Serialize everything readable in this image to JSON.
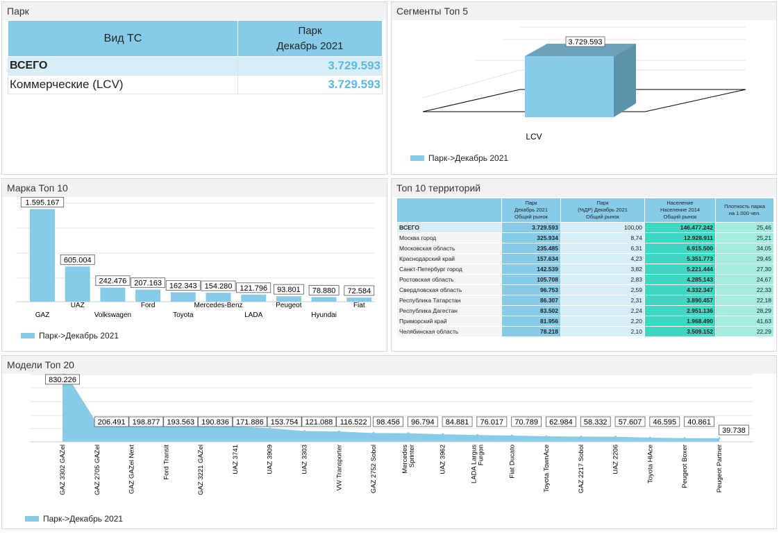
{
  "park": {
    "title": "Парк",
    "col1": "Вид ТС",
    "col2_line1": "Парк",
    "col2_line2": "Декабрь 2021",
    "rows": [
      {
        "label": "ВСЕГО",
        "value": "3.729.593"
      },
      {
        "label": "Коммерческие (LCV)",
        "value": "3.729.593"
      }
    ]
  },
  "segments": {
    "title": "Сегменты Топ 5",
    "legend": "Парк->Декабрь 2021",
    "chart_data": {
      "type": "bar",
      "categories": [
        "LCV"
      ],
      "values": [
        3729593
      ],
      "labels": [
        "3.729.593"
      ]
    }
  },
  "brands": {
    "title": "Марка Топ 10",
    "legend": "Парк->Декабрь 2021",
    "chart_data": {
      "type": "bar",
      "categories": [
        "GAZ",
        "UAZ",
        "Volkswagen",
        "Ford",
        "Toyota",
        "Mercedes-Benz",
        "LADA",
        "Peugeot",
        "Hyundai",
        "Fiat"
      ],
      "values": [
        1595167,
        605004,
        242476,
        207163,
        162343,
        154280,
        121796,
        93801,
        78880,
        72584
      ],
      "labels": [
        "1.595.167",
        "605.004",
        "242.476",
        "207.163",
        "162.343",
        "154.280",
        "121.796",
        "93.801",
        "78.880",
        "72.584"
      ]
    }
  },
  "territories": {
    "title": "Топ 10 территорий",
    "headers": [
      "",
      "Парк\nДекабрь 2021\nОбщий рынок",
      "Парк\n(%ДР) Декабрь 2021\nОбщий рынок",
      "Население\nНаселение 2014\nОбщий рынок",
      "Плотность парка\nна 1.000 чел."
    ],
    "rows": [
      [
        "ВСЕГО",
        "3.729.593",
        "100,00",
        "146.477.242",
        "25,46"
      ],
      [
        "Москва город",
        "325.934",
        "8,74",
        "12.928.911",
        "25,21"
      ],
      [
        "Московская область",
        "235.485",
        "6,31",
        "6.915.500",
        "34,05"
      ],
      [
        "Краснодарский край",
        "157.634",
        "4,23",
        "5.351.773",
        "29,45"
      ],
      [
        "Санкт-Петербург город",
        "142.539",
        "3,82",
        "5.221.444",
        "27,30"
      ],
      [
        "Ростовская область",
        "105.708",
        "2,83",
        "4.285.143",
        "24,67"
      ],
      [
        "Свердловская область",
        "96.753",
        "2,59",
        "4.332.347",
        "22,33"
      ],
      [
        "Республика Татарстан",
        "86.307",
        "2,31",
        "3.890.457",
        "22,18"
      ],
      [
        "Республика Дагестан",
        "83.502",
        "2,24",
        "2.951.136",
        "28,29"
      ],
      [
        "Приморский край",
        "81.956",
        "2,20",
        "1.968.490",
        "41,63"
      ],
      [
        "Челябинская область",
        "78.218",
        "2,10",
        "3.509.152",
        "22,29"
      ]
    ]
  },
  "models": {
    "title": "Модели Топ 20",
    "legend": "Парк->Декабрь 2021",
    "chart_data": {
      "type": "area",
      "categories": [
        "GAZ 3302 GAZel",
        "GAZ 2705 GAZel",
        "GAZ GAZel Next",
        "Ford Transit",
        "GAZ 3221 GAZel",
        "UAZ 3741",
        "UAZ 3909",
        "UAZ 3303",
        "VW Transporter",
        "GAZ 2752 Sobol",
        "Mercedes Sprinter",
        "UAZ 3962",
        "LADA Largus Furgon",
        "Fiat Ducato",
        "Toyota TownAce",
        "GAZ 2217 Sobol",
        "UAZ 2206",
        "Toyota HiAce",
        "Peugeot Boxer",
        "Peugeot Partner"
      ],
      "values": [
        830226,
        206491,
        198877,
        193563,
        190836,
        171886,
        153754,
        121088,
        116522,
        98456,
        96794,
        84881,
        76017,
        70789,
        62984,
        58332,
        57607,
        46595,
        40861,
        39738
      ],
      "labels": [
        "830.226",
        "206.491",
        "198.877",
        "193.563",
        "190.836",
        "171.886",
        "153.754",
        "121.088",
        "116.522",
        "98.456",
        "96.794",
        "84.881",
        "76.017",
        "70.789",
        "62.984",
        "58.332",
        "57.607",
        "46.595",
        "40.861",
        "39.738"
      ]
    }
  },
  "colors": {
    "bar": "#87cbe8",
    "bar_dark": "#6aa3bb",
    "header_bg": "#87cbe8",
    "total_row": "#d7edf7",
    "value_blue": "#5bb8e0",
    "teal": "#3fd7c1",
    "teal_light": "#a4ecdf"
  }
}
